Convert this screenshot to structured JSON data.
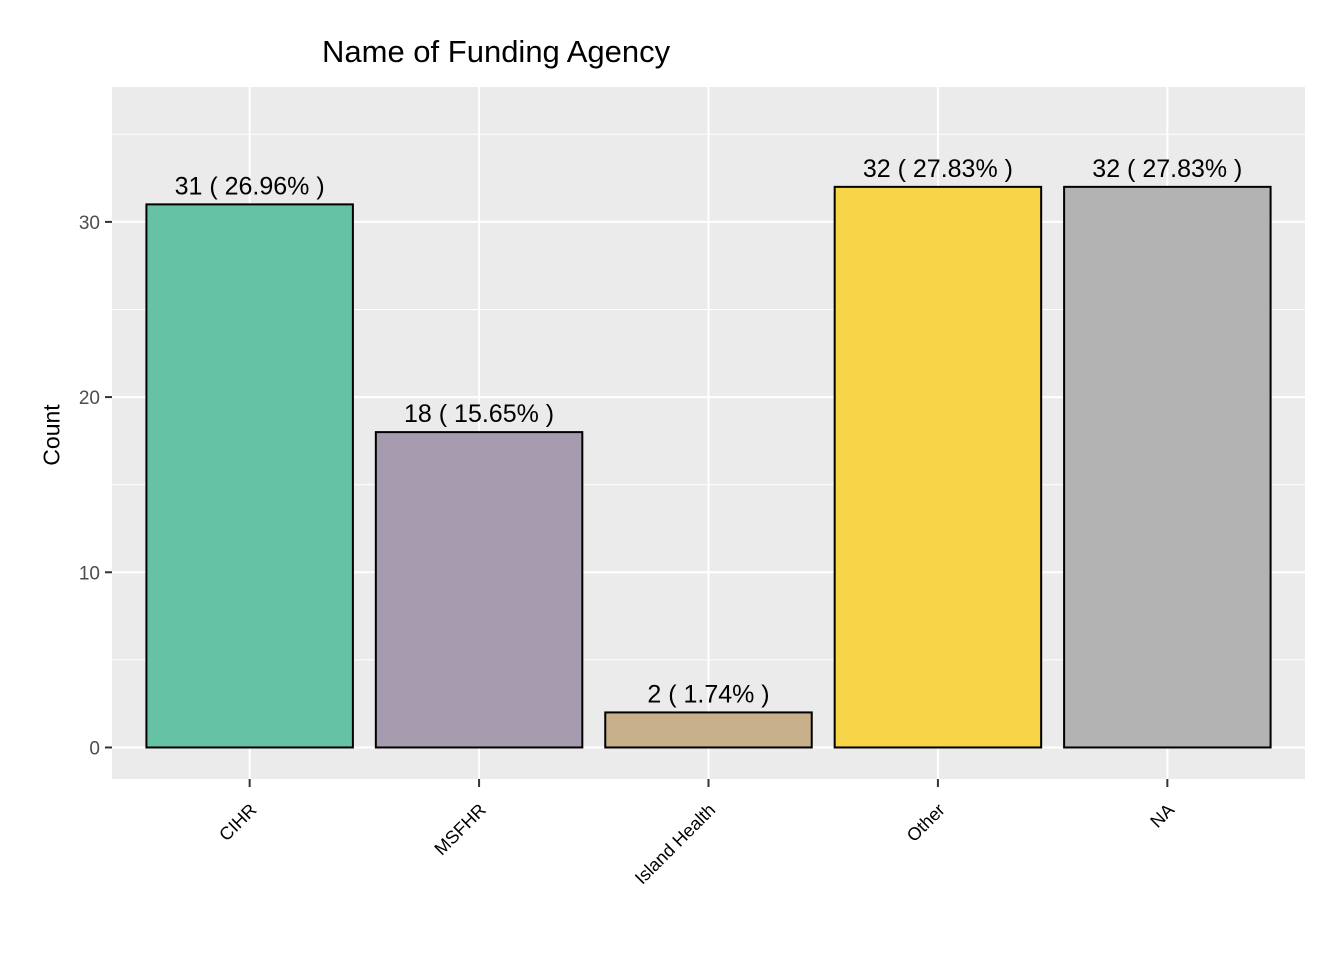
{
  "chart_data": {
    "type": "bar",
    "title": "Name of Funding Agency",
    "xlabel": "",
    "ylabel": "Count",
    "categories": [
      "CIHR",
      "MSFHR",
      "Island Health",
      "Other",
      "NA"
    ],
    "values": [
      31,
      18,
      2,
      32,
      32
    ],
    "data_labels": [
      "31 ( 26.96% )",
      "18 ( 15.65% )",
      "2 ( 1.74% )",
      "32 ( 27.83% )",
      "32 ( 27.83% )"
    ],
    "colors": [
      "#66c2a5",
      "#a79caf",
      "#c8b08a",
      "#f7d448",
      "#b3b3b3"
    ],
    "ylim": [
      -1.8,
      37.7
    ],
    "yticks": [
      0,
      10,
      20,
      30
    ],
    "grid": true,
    "panel_background": "#ebebeb",
    "bar_outline": "#000000",
    "x_tick_rotation_deg": -45
  }
}
